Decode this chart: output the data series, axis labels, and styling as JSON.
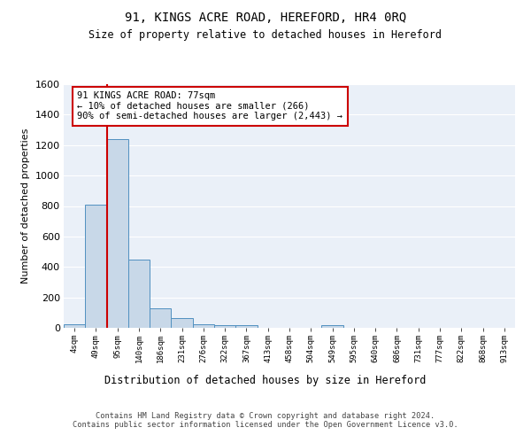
{
  "title1": "91, KINGS ACRE ROAD, HEREFORD, HR4 0RQ",
  "title2": "Size of property relative to detached houses in Hereford",
  "xlabel": "Distribution of detached houses by size in Hereford",
  "ylabel": "Number of detached properties",
  "bin_labels": [
    "4sqm",
    "49sqm",
    "95sqm",
    "140sqm",
    "186sqm",
    "231sqm",
    "276sqm",
    "322sqm",
    "367sqm",
    "413sqm",
    "458sqm",
    "504sqm",
    "549sqm",
    "595sqm",
    "640sqm",
    "686sqm",
    "731sqm",
    "777sqm",
    "822sqm",
    "868sqm",
    "913sqm"
  ],
  "bar_heights": [
    25,
    810,
    1240,
    450,
    130,
    65,
    25,
    15,
    15,
    0,
    0,
    0,
    15,
    0,
    0,
    0,
    0,
    0,
    0,
    0,
    0
  ],
  "bar_color": "#c8d8e8",
  "bar_edge_color": "#5090c0",
  "vline_x": 1.5,
  "vline_color": "#cc0000",
  "annotation_text": "91 KINGS ACRE ROAD: 77sqm\n← 10% of detached houses are smaller (266)\n90% of semi-detached houses are larger (2,443) →",
  "annotation_box_color": "#ffffff",
  "annotation_box_edge": "#cc0000",
  "ylim": [
    0,
    1600
  ],
  "yticks": [
    0,
    200,
    400,
    600,
    800,
    1000,
    1200,
    1400,
    1600
  ],
  "background_color": "#eaf0f8",
  "footer_text": "Contains HM Land Registry data © Crown copyright and database right 2024.\nContains public sector information licensed under the Open Government Licence v3.0.",
  "grid_color": "#ffffff"
}
